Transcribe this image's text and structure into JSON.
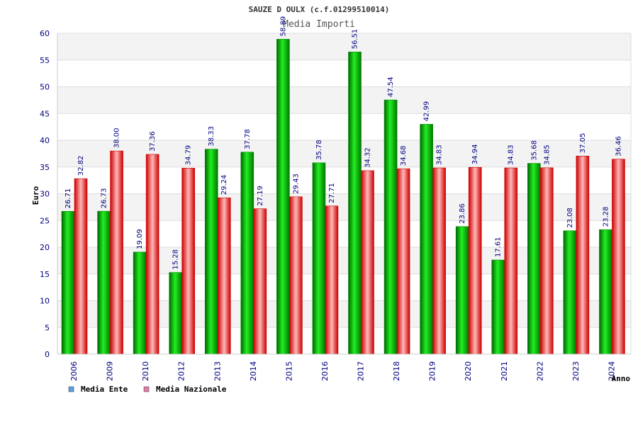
{
  "chart_data": {
    "type": "bar",
    "title": "SAUZE D OULX (c.f.01299510014)",
    "subtitle": "Media Importi",
    "xlabel": "Anno",
    "ylabel": "Euro",
    "ylim": [
      0,
      60
    ],
    "yticks": [
      0,
      5,
      10,
      15,
      20,
      25,
      30,
      35,
      40,
      45,
      50,
      55,
      60
    ],
    "grid": true,
    "legend_position": "bottom-left",
    "categories": [
      "2006",
      "2009",
      "2010",
      "2012",
      "2013",
      "2014",
      "2015",
      "2016",
      "2017",
      "2018",
      "2019",
      "2020",
      "2021",
      "2022",
      "2023",
      "2024"
    ],
    "series": [
      {
        "name": "Media Ente",
        "color": "#00bb00",
        "legend_color": "#5aa0e8",
        "values": [
          26.71,
          26.73,
          19.09,
          15.28,
          38.33,
          37.78,
          58.89,
          35.78,
          56.51,
          47.54,
          42.99,
          23.86,
          17.61,
          35.68,
          23.08,
          23.28
        ],
        "labels": [
          "26.71",
          "26.73",
          "19.09",
          "15.28",
          "38.33",
          "37.78",
          "58.89",
          "35.78",
          "56.51",
          "47.54",
          "42.99",
          "23.86",
          "17.61",
          "35.68",
          "23.08",
          "23.28"
        ]
      },
      {
        "name": "Media Nazionale",
        "color": "#ee1111",
        "legend_color": "#e87aa8",
        "values": [
          32.82,
          38.0,
          37.36,
          34.79,
          29.24,
          27.19,
          29.43,
          27.71,
          34.32,
          34.68,
          34.83,
          34.94,
          34.83,
          34.85,
          37.05,
          36.46
        ],
        "labels": [
          "32.82",
          "38.00",
          "37.36",
          "34.79",
          "29.24",
          "27.19",
          "29.43",
          "27.71",
          "34.32",
          "34.68",
          "34.83",
          "34.94",
          "34.83",
          "34.85",
          "37.05",
          "36.46"
        ]
      }
    ]
  }
}
